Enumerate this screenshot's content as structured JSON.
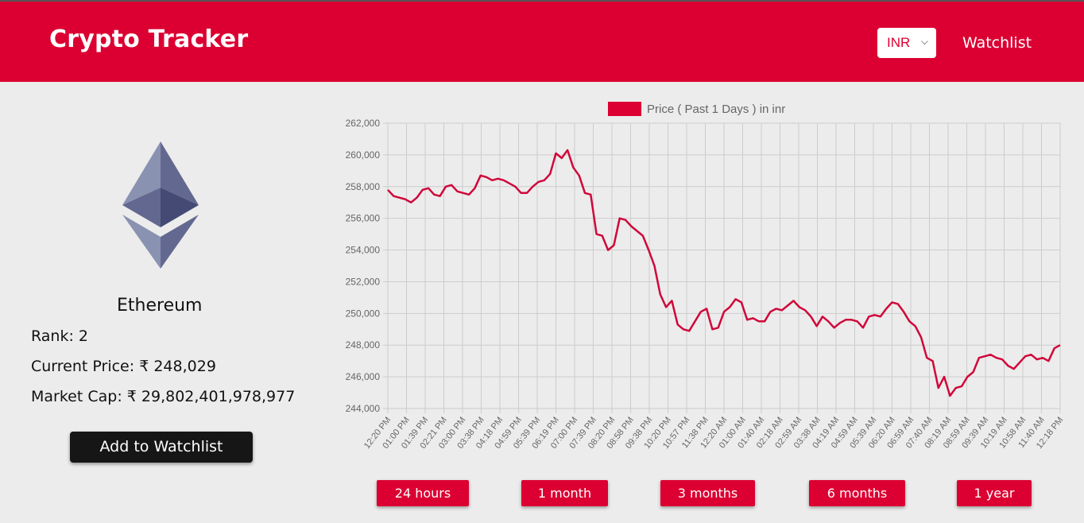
{
  "header": {
    "title": "Crypto Tracker",
    "currency": "INR",
    "watchlist_label": "Watchlist"
  },
  "coin": {
    "name": "Ethereum",
    "rank_label": "Rank:",
    "rank": "2",
    "price_label": "Current Price:",
    "price": "₹ 248,029",
    "market_cap_label": "Market Cap:",
    "market_cap": "₹ 29,802,401,978,977",
    "add_button": "Add to Watchlist",
    "logo_icon": "ethereum-logo-icon"
  },
  "colors": {
    "brand": "#dc0032",
    "line": "#d0073a",
    "grid": "#cccccc"
  },
  "range_buttons": [
    {
      "label": "24 hours"
    },
    {
      "label": "1 month"
    },
    {
      "label": "3 months"
    },
    {
      "label": "6 months"
    },
    {
      "label": "1 year"
    }
  ],
  "chart_data": {
    "type": "line",
    "legend": "Price ( Past 1 Days ) in inr",
    "legend_placement": "top",
    "grid": true,
    "ylim": [
      244000,
      262000
    ],
    "y_ticks": [
      "262,000",
      "260,000",
      "258,000",
      "256,000",
      "254,000",
      "252,000",
      "250,000",
      "248,000",
      "246,000",
      "244,000"
    ],
    "x_ticks": [
      "12:20 PM",
      "01:00 PM",
      "01:39 PM",
      "02:21 PM",
      "03:00 PM",
      "03:38 PM",
      "04:18 PM",
      "04:59 PM",
      "05:39 PM",
      "06:19 PM",
      "07:00 PM",
      "07:39 PM",
      "08:20 PM",
      "08:58 PM",
      "09:38 PM",
      "10:20 PM",
      "10:57 PM",
      "11:38 PM",
      "12:20 AM",
      "01:00 AM",
      "01:40 AM",
      "02:18 AM",
      "02:59 AM",
      "03:38 AM",
      "04:19 AM",
      "04:59 AM",
      "05:39 AM",
      "06:20 AM",
      "06:59 AM",
      "07:40 AM",
      "08:19 AM",
      "08:59 AM",
      "09:39 AM",
      "10:19 AM",
      "10:58 AM",
      "11:40 AM",
      "12:18 PM"
    ],
    "series": [
      {
        "values": [
          257800,
          257400,
          257300,
          257200,
          257000,
          257300,
          257800,
          257900,
          257500,
          257400,
          258000,
          258100,
          257700,
          257600,
          257500,
          257900,
          258700,
          258600,
          258400,
          258500,
          258400,
          258200,
          258000,
          257600,
          257600,
          258000,
          258300,
          258400,
          258800,
          260100,
          259800,
          260300,
          259200,
          258700,
          257600,
          257500,
          255000,
          254900,
          254000,
          254300,
          256000,
          255900,
          255500,
          255200,
          254900,
          254000,
          253000,
          251200,
          250400,
          250800,
          249300,
          249000,
          248900,
          249500,
          250100,
          250300,
          249000,
          249100,
          250100,
          250400,
          250900,
          250700,
          249600,
          249700,
          249500,
          249500,
          250100,
          250300,
          250200,
          250500,
          250800,
          250400,
          250200,
          249800,
          249200,
          249800,
          249500,
          249100,
          249400,
          249600,
          249600,
          249500,
          249100,
          249800,
          249900,
          249800,
          250300,
          250700,
          250600,
          250100,
          249500,
          249200,
          248500,
          247200,
          247000,
          245300,
          246000,
          244800,
          245300,
          245400,
          246000,
          246300,
          247200,
          247300,
          247400,
          247200,
          247100,
          246700,
          246500,
          246900,
          247300,
          247400,
          247100,
          247200,
          247000,
          247800,
          248000
        ]
      }
    ]
  }
}
